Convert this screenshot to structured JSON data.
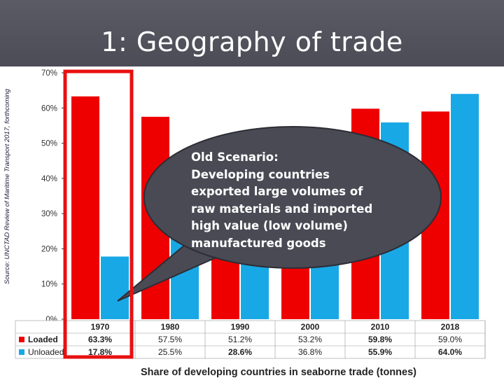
{
  "slide": {
    "title": "1: Geography of trade",
    "source": "Source: UNCTAD Review of Maritime Transport 2017, forthcoming"
  },
  "callout": {
    "lines": [
      "Old Scenario:",
      "Developing countries",
      "exported large volumes of",
      "raw materials and imported",
      "high value (low volume)",
      "manufactured goods"
    ]
  },
  "colors": {
    "loaded": "#ee0000",
    "unloaded": "#19a8e6",
    "highlight": "#e81010",
    "callout": "#4a4a55"
  },
  "chart_data": {
    "type": "bar",
    "title": "Share of developing countries in seaborne trade (tonnes)",
    "categories": [
      "1970",
      "1980",
      "1990",
      "2000",
      "2010",
      "2018"
    ],
    "series": [
      {
        "name": "Loaded",
        "values": [
          63.3,
          57.5,
          51.2,
          53.2,
          59.8,
          59.0
        ],
        "labels": [
          "63.3%",
          "57.5%",
          "51.2%",
          "53.2%",
          "59.8%",
          "59.0%"
        ]
      },
      {
        "name": "Unloaded",
        "values": [
          17.8,
          25.5,
          28.6,
          36.8,
          55.9,
          64.0
        ],
        "labels": [
          "17.8%",
          "25.5%",
          "28.6%",
          "36.8%",
          "55.9%",
          "64.0%"
        ]
      }
    ],
    "yticks": [
      "0%",
      "10%",
      "20%",
      "30%",
      "40%",
      "50%",
      "60%",
      "70%"
    ],
    "ylim": [
      0,
      70
    ],
    "grid": false,
    "legend": "table-left",
    "highlighted_category": "1970"
  }
}
